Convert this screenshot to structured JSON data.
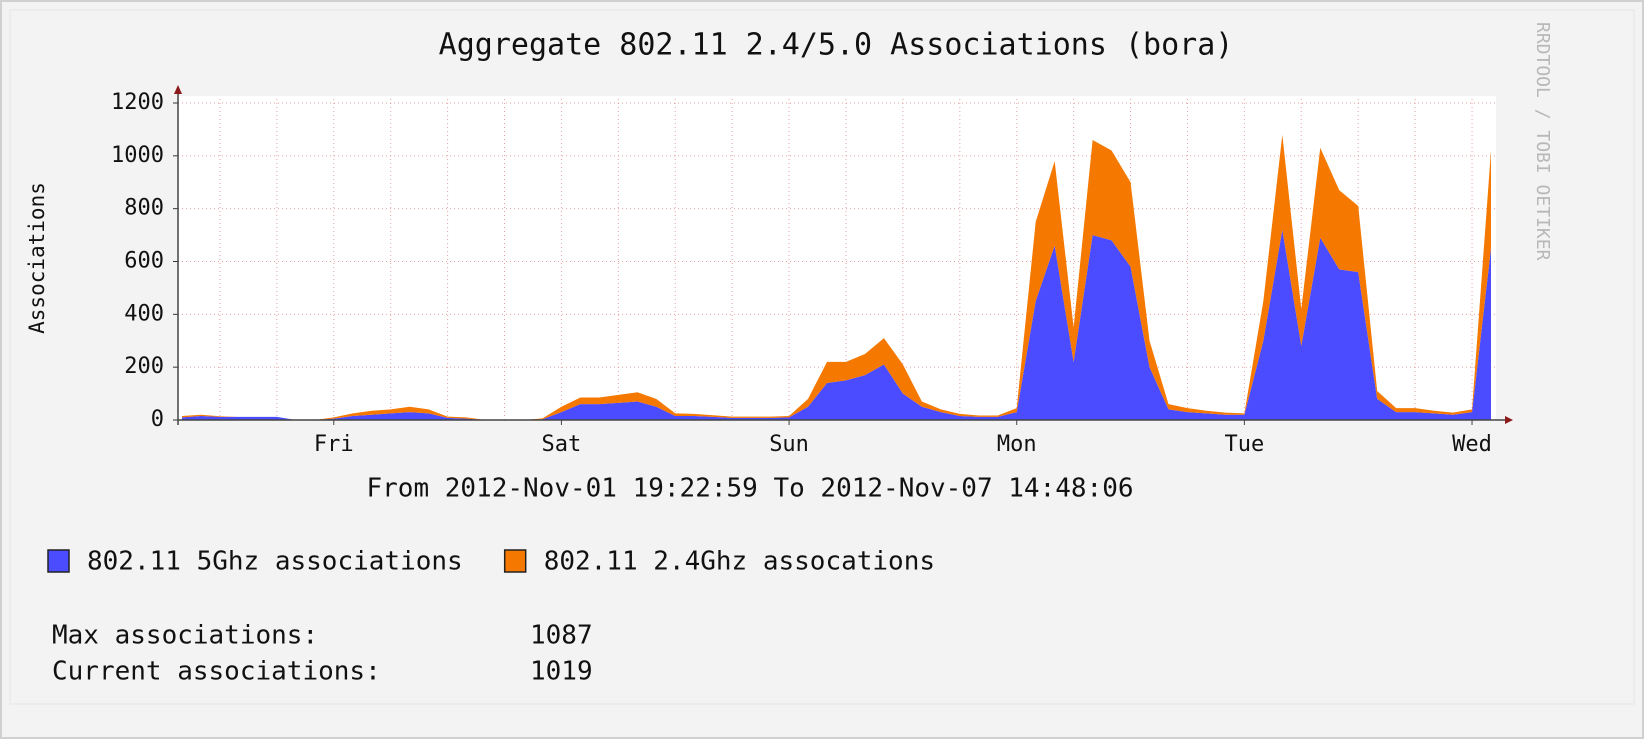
{
  "chart_data": {
    "type": "stacked_area",
    "title": "Aggregate 802.11 2.4/5.0 Associations (bora)",
    "y_label": "Associations",
    "x_label": "From 2012-Nov-01 19:22:59 To 2012-Nov-07 14:48:06",
    "watermark": "RRDTOOL / TOBI OETIKER",
    "categories": [
      null,
      null,
      null,
      null,
      null,
      null,
      null,
      null,
      "Fri",
      null,
      null,
      null,
      null,
      null,
      null,
      null,
      null,
      null,
      null,
      null,
      "Sat",
      null,
      null,
      null,
      null,
      null,
      null,
      null,
      null,
      null,
      null,
      null,
      "Sun",
      null,
      null,
      null,
      null,
      null,
      null,
      null,
      null,
      null,
      null,
      null,
      "Mon",
      null,
      null,
      null,
      null,
      null,
      null,
      null,
      null,
      null,
      null,
      null,
      "Tue",
      null,
      null,
      null,
      null,
      null,
      null,
      null,
      null,
      null,
      null,
      null,
      "Wed",
      null
    ],
    "series": [
      {
        "name": "802.11 5Ghz associations",
        "color": "#4b4bff",
        "values": [
          10,
          15,
          12,
          12,
          12,
          12,
          0,
          0,
          5,
          15,
          20,
          25,
          30,
          25,
          8,
          5,
          0,
          0,
          0,
          3,
          30,
          60,
          60,
          65,
          70,
          50,
          15,
          15,
          12,
          8,
          8,
          8,
          10,
          50,
          140,
          150,
          170,
          210,
          100,
          50,
          30,
          15,
          12,
          12,
          30,
          450,
          660,
          220,
          700,
          680,
          580,
          200,
          40,
          30,
          25,
          20,
          20,
          300,
          720,
          280,
          690,
          570,
          560,
          80,
          30,
          30,
          25,
          20,
          30,
          650
        ]
      },
      {
        "name": "802.11 2.4Ghz assocations",
        "color": "#f57900",
        "values": [
          5,
          5,
          2,
          0,
          0,
          0,
          0,
          0,
          5,
          10,
          15,
          15,
          20,
          15,
          5,
          5,
          0,
          0,
          0,
          3,
          20,
          25,
          25,
          30,
          35,
          30,
          10,
          8,
          6,
          5,
          5,
          5,
          5,
          30,
          80,
          70,
          80,
          100,
          110,
          20,
          10,
          8,
          5,
          5,
          15,
          300,
          320,
          130,
          360,
          340,
          320,
          100,
          20,
          15,
          10,
          8,
          5,
          150,
          360,
          140,
          340,
          300,
          250,
          30,
          15,
          15,
          10,
          8,
          10,
          370
        ]
      }
    ],
    "ylim": [
      0,
      1200
    ],
    "yticks": [
      0,
      200,
      400,
      600,
      800,
      1000,
      1200
    ],
    "grid": true,
    "stats": [
      {
        "label": "Max associations:",
        "value": 1087
      },
      {
        "label": "Current associations:",
        "value": 1019
      }
    ]
  }
}
